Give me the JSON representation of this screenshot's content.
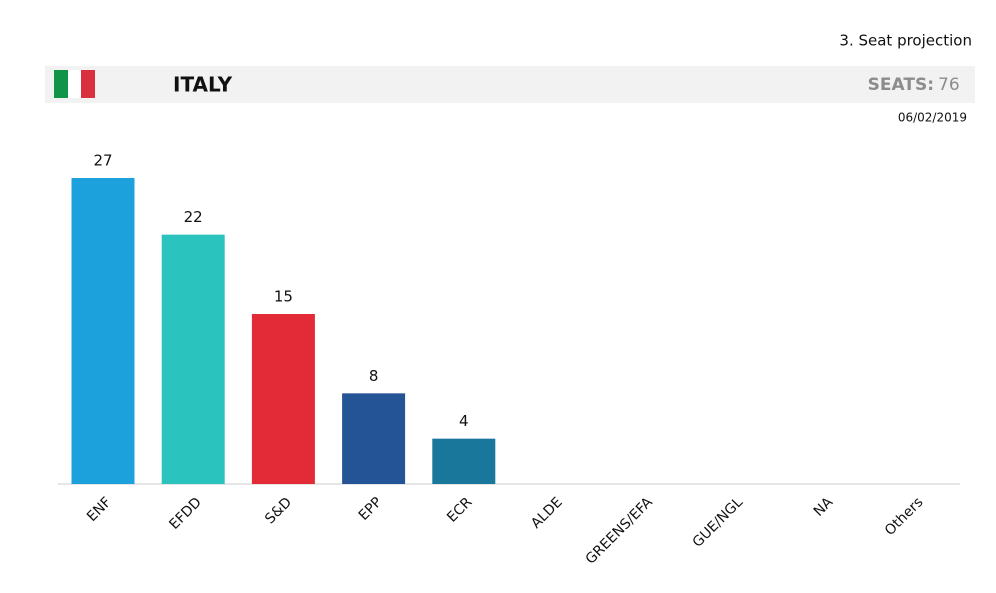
{
  "chart_data": {
    "type": "bar",
    "subtitle": "3. Seat projection",
    "title": "ITALY",
    "seats_label": "SEATS:",
    "seats": 76,
    "date": "06/02/2019",
    "categories": [
      "ENF",
      "EFDD",
      "S&D",
      "EPP",
      "ECR",
      "ALDE",
      "GREENS/EFA",
      "GUE/NGL",
      "NA",
      "Others"
    ],
    "values": [
      27,
      22,
      15,
      8,
      4,
      null,
      null,
      null,
      null,
      null
    ],
    "colors": [
      "#1da1dc",
      "#2bc3bd",
      "#e22b36",
      "#245495",
      "#1a779c",
      null,
      null,
      null,
      null,
      null
    ]
  }
}
